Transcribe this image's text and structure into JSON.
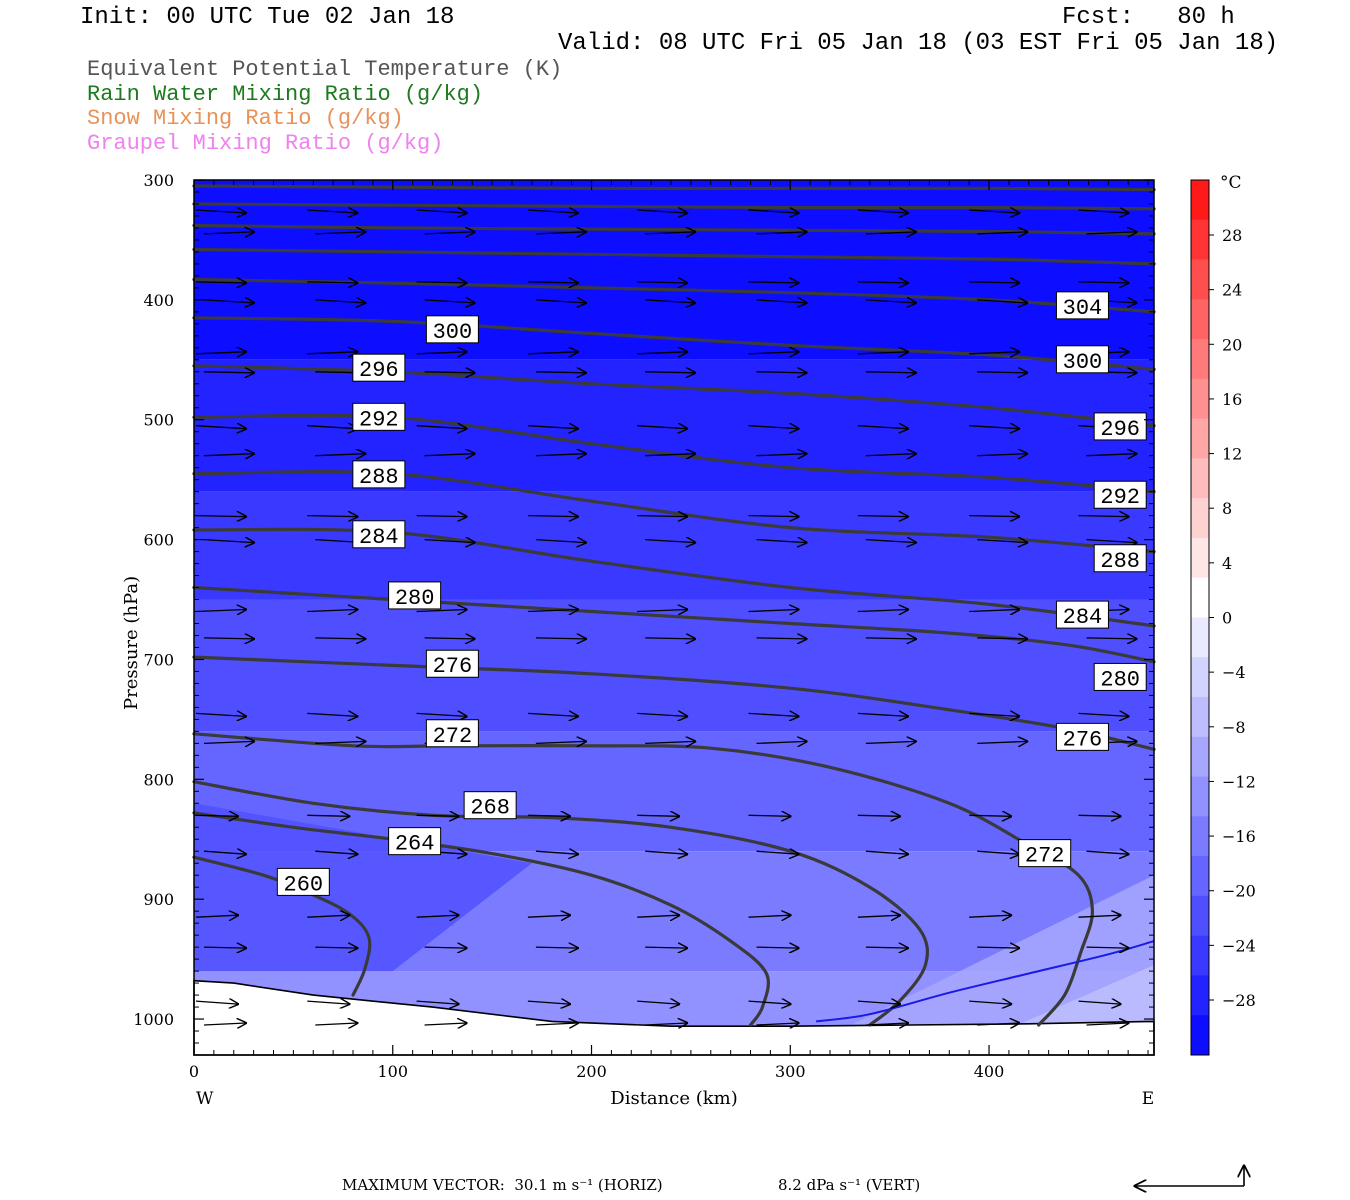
{
  "header": {
    "init": "Init: 00 UTC Tue 02 Jan 18",
    "fcst": "Fcst:   80 h",
    "valid": "Valid: 08 UTC Fri 05 Jan 18 (03 EST Fri 05 Jan 18)"
  },
  "legend": [
    {
      "label": "Equivalent Potential Temperature (K)",
      "color": "#555555"
    },
    {
      "label": "Rain Water Mixing Ratio (g/kg)",
      "color": "#1e7a1e"
    },
    {
      "label": "Snow Mixing Ratio (g/kg)",
      "color": "#e8925a"
    },
    {
      "label": "Graupel Mixing Ratio (g/kg)",
      "color": "#ee82ee"
    }
  ],
  "footer": {
    "max_vector": "MAXIMUM VECTOR:  30.1 m s⁻¹ (HORIZ)",
    "vert": "8.2 dPa s⁻¹ (VERT)"
  },
  "chart_data": {
    "type": "cross-section",
    "xlabel": "Distance (km)",
    "ylabel": "Pressure (hPa)",
    "xlim": [
      0,
      483
    ],
    "ylim": [
      1030,
      300
    ],
    "x_ticks": [
      "0",
      "100",
      "200",
      "300",
      "400"
    ],
    "x_tick_values": [
      0,
      100,
      200,
      300,
      400
    ],
    "y_ticks": [
      "300",
      "400",
      "500",
      "600",
      "700",
      "800",
      "900",
      "1000"
    ],
    "y_tick_values": [
      300,
      400,
      500,
      600,
      700,
      800,
      900,
      1000
    ],
    "left_end": "W",
    "right_end": "E",
    "colorbar": {
      "unit": "°C",
      "labels": [
        "28",
        "24",
        "20",
        "16",
        "12",
        "8",
        "4",
        "0",
        "−4",
        "−8",
        "−12",
        "−16",
        "−20",
        "−24",
        "−28"
      ],
      "label_values": [
        28,
        24,
        20,
        16,
        12,
        8,
        4,
        0,
        -4,
        -8,
        -12,
        -16,
        -20,
        -24,
        -28
      ],
      "colors_top_to_bottom": [
        "#ff1a1a",
        "#ff3535",
        "#ff4e4e",
        "#ff6464",
        "#ff7a7a",
        "#ff9090",
        "#ffa6a6",
        "#ffbcbc",
        "#ffd2d2",
        "#ffe6e6",
        "#ffffff",
        "#e9e9ff",
        "#d3d3ff",
        "#bdbdff",
        "#a7a7ff",
        "#9191ff",
        "#7b7bff",
        "#6565ff",
        "#4f4fff",
        "#3939ff",
        "#2323ff",
        "#0d0dff"
      ]
    },
    "theta_e_contours": [
      {
        "value": 260,
        "points": [
          [
            0,
            865
          ],
          [
            35,
            880
          ],
          [
            58,
            895
          ],
          [
            78,
            912
          ],
          [
            88,
            932
          ],
          [
            86,
            958
          ],
          [
            80,
            980
          ]
        ]
      },
      {
        "value": 264,
        "points": [
          [
            0,
            828
          ],
          [
            50,
            840
          ],
          [
            100,
            850
          ],
          [
            150,
            862
          ],
          [
            200,
            880
          ],
          [
            240,
            905
          ],
          [
            270,
            935
          ],
          [
            288,
            962
          ],
          [
            286,
            990
          ],
          [
            280,
            1005
          ]
        ]
      },
      {
        "value": 268,
        "points": [
          [
            0,
            802
          ],
          [
            60,
            820
          ],
          [
            120,
            830
          ],
          [
            180,
            832
          ],
          [
            240,
            840
          ],
          [
            300,
            860
          ],
          [
            340,
            890
          ],
          [
            365,
            925
          ],
          [
            368,
            955
          ],
          [
            355,
            985
          ],
          [
            340,
            1005
          ]
        ]
      },
      {
        "value": 272,
        "points": [
          [
            0,
            762
          ],
          [
            80,
            772
          ],
          [
            130,
            772
          ],
          [
            200,
            772
          ],
          [
            260,
            774
          ],
          [
            320,
            790
          ],
          [
            380,
            820
          ],
          [
            420,
            855
          ],
          [
            445,
            880
          ],
          [
            452,
            910
          ],
          [
            446,
            945
          ],
          [
            438,
            980
          ],
          [
            425,
            1005
          ]
        ]
      },
      {
        "value": 276,
        "points": [
          [
            0,
            698
          ],
          [
            100,
            705
          ],
          [
            200,
            712
          ],
          [
            300,
            724
          ],
          [
            380,
            742
          ],
          [
            440,
            758
          ],
          [
            483,
            775
          ]
        ]
      },
      {
        "value": 280,
        "points": [
          [
            0,
            640
          ],
          [
            100,
            650
          ],
          [
            200,
            660
          ],
          [
            300,
            670
          ],
          [
            380,
            678
          ],
          [
            440,
            688
          ],
          [
            483,
            702
          ]
        ]
      },
      {
        "value": 284,
        "points": [
          [
            0,
            592
          ],
          [
            100,
            594
          ],
          [
            200,
            618
          ],
          [
            300,
            640
          ],
          [
            400,
            654
          ],
          [
            483,
            672
          ]
        ]
      },
      {
        "value": 288,
        "points": [
          [
            0,
            545
          ],
          [
            100,
            545
          ],
          [
            200,
            568
          ],
          [
            300,
            590
          ],
          [
            400,
            598
          ],
          [
            483,
            610
          ]
        ]
      },
      {
        "value": 292,
        "points": [
          [
            0,
            498
          ],
          [
            100,
            498
          ],
          [
            200,
            520
          ],
          [
            300,
            540
          ],
          [
            400,
            548
          ],
          [
            483,
            560
          ]
        ]
      },
      {
        "value": 296,
        "points": [
          [
            0,
            455
          ],
          [
            100,
            460
          ],
          [
            200,
            470
          ],
          [
            300,
            478
          ],
          [
            400,
            490
          ],
          [
            483,
            505
          ]
        ]
      },
      {
        "value": 300,
        "points": [
          [
            0,
            415
          ],
          [
            100,
            418
          ],
          [
            200,
            428
          ],
          [
            300,
            438
          ],
          [
            400,
            446
          ],
          [
            483,
            458
          ]
        ]
      },
      {
        "value": 304,
        "points": [
          [
            0,
            383
          ],
          [
            100,
            386
          ],
          [
            200,
            390
          ],
          [
            300,
            394
          ],
          [
            400,
            400
          ],
          [
            483,
            410
          ]
        ]
      },
      {
        "value": 308,
        "points": [
          [
            0,
            358
          ],
          [
            100,
            360
          ],
          [
            200,
            362
          ],
          [
            300,
            364
          ],
          [
            400,
            366
          ],
          [
            483,
            370
          ]
        ]
      },
      {
        "value": 312,
        "points": [
          [
            0,
            338
          ],
          [
            100,
            340
          ],
          [
            200,
            341
          ],
          [
            300,
            342
          ],
          [
            400,
            343
          ],
          [
            483,
            345
          ]
        ]
      },
      {
        "value": 316,
        "points": [
          [
            0,
            320
          ],
          [
            100,
            321
          ],
          [
            200,
            322
          ],
          [
            300,
            323
          ],
          [
            400,
            323
          ],
          [
            483,
            324
          ]
        ]
      },
      {
        "value": 320,
        "points": [
          [
            0,
            305
          ],
          [
            100,
            306
          ],
          [
            200,
            307
          ],
          [
            300,
            307
          ],
          [
            400,
            307
          ],
          [
            483,
            308
          ]
        ]
      }
    ],
    "contour_labels": [
      {
        "text": "260",
        "x": 55,
        "p": 886
      },
      {
        "text": "264",
        "x": 111,
        "p": 852
      },
      {
        "text": "268",
        "x": 149,
        "p": 822
      },
      {
        "text": "272",
        "x": 130,
        "p": 762
      },
      {
        "text": "276",
        "x": 130,
        "p": 704
      },
      {
        "text": "280",
        "x": 111,
        "p": 647
      },
      {
        "text": "284",
        "x": 93,
        "p": 596
      },
      {
        "text": "288",
        "x": 93,
        "p": 546
      },
      {
        "text": "292",
        "x": 93,
        "p": 498
      },
      {
        "text": "296",
        "x": 93,
        "p": 457
      },
      {
        "text": "300",
        "x": 130,
        "p": 425
      },
      {
        "text": "304",
        "x": 447,
        "p": 405
      },
      {
        "text": "300",
        "x": 447,
        "p": 450
      },
      {
        "text": "296",
        "x": 466,
        "p": 506
      },
      {
        "text": "292",
        "x": 466,
        "p": 563
      },
      {
        "text": "288",
        "x": 466,
        "p": 616
      },
      {
        "text": "284",
        "x": 447,
        "p": 663
      },
      {
        "text": "280",
        "x": 466,
        "p": 715
      },
      {
        "text": "276",
        "x": 447,
        "p": 765
      },
      {
        "text": "272",
        "x": 428,
        "p": 862
      }
    ],
    "freezing_line": {
      "color": "#1a1ae6",
      "points": [
        [
          313,
          1002
        ],
        [
          340,
          996
        ],
        [
          380,
          978
        ],
        [
          420,
          962
        ],
        [
          460,
          946
        ],
        [
          483,
          935
        ]
      ]
    },
    "terrain": {
      "points": [
        [
          0,
          968
        ],
        [
          20,
          970
        ],
        [
          60,
          980
        ],
        [
          120,
          990
        ],
        [
          180,
          1002
        ],
        [
          240,
          1006
        ],
        [
          300,
          1006
        ],
        [
          360,
          1005
        ],
        [
          420,
          1004
        ],
        [
          483,
          1002
        ]
      ]
    },
    "vector_rows_hpa": [
      325,
      345,
      385,
      400,
      445,
      460,
      505,
      530,
      580,
      600,
      660,
      682,
      745,
      770,
      830,
      860,
      915,
      940,
      985,
      1005
    ],
    "vector_cols_km": [
      0,
      56,
      111,
      167,
      222,
      278,
      333,
      389,
      444
    ],
    "isotherms_c": [
      {
        "temp": -28,
        "pressure_top": 300,
        "pressure_bottom": 450
      },
      {
        "temp": -24,
        "pressure_top": 450,
        "pressure_bottom": 560
      },
      {
        "temp": -20,
        "pressure_top": 560,
        "pressure_bottom": 650
      },
      {
        "temp": -16,
        "pressure_top": 650,
        "pressure_bottom": 760
      },
      {
        "temp": -12,
        "pressure_top": 760,
        "pressure_bottom": 860
      },
      {
        "temp": -8,
        "pressure_top": 860,
        "pressure_bottom": 960
      },
      {
        "temp": -4,
        "pressure_top": 960,
        "pressure_bottom": 1030
      }
    ]
  }
}
